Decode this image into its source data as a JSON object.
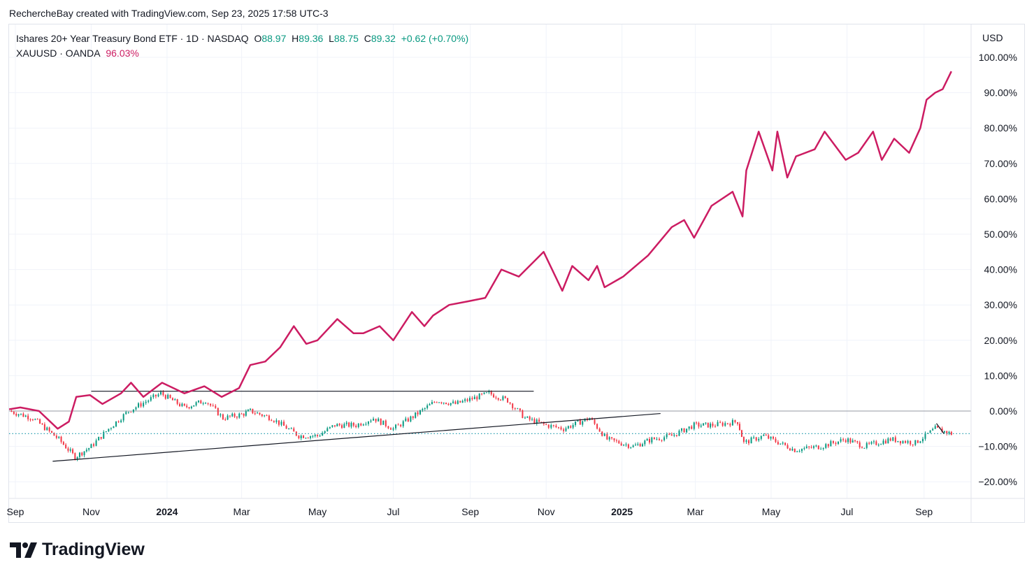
{
  "credit": "RechercheBay created with TradingView.com, Sep 23, 2025 17:58 UTC-3",
  "legend": {
    "main_title": "Ishares 20+ Year Treasury Bond ETF · 1D · NASDAQ",
    "o_label": "O",
    "o": "88.97",
    "h_label": "H",
    "h": "89.36",
    "l_label": "L",
    "l": "88.75",
    "c_label": "C",
    "c": "89.32",
    "change": "+0.62 (+0.70%)",
    "compare_title": "XAUUSD · OANDA",
    "compare_value": "96.03%"
  },
  "currency": "USD",
  "logo_text": "TradingView",
  "chart_data": {
    "type": "line",
    "colors": {
      "gold": "#cc1c62",
      "up": "#089981",
      "down": "#f23645",
      "price_line": "#2a9fb0",
      "trendline": "#131722",
      "zero_line": "#9598a1"
    },
    "x_ticks": [
      {
        "label": "Sep",
        "date": "2023-09-01"
      },
      {
        "label": "Nov",
        "date": "2023-11-01"
      },
      {
        "label": "2024",
        "date": "2024-01-01",
        "bold": true
      },
      {
        "label": "Mar",
        "date": "2024-03-01"
      },
      {
        "label": "May",
        "date": "2024-05-01"
      },
      {
        "label": "Jul",
        "date": "2024-07-01"
      },
      {
        "label": "Sep",
        "date": "2024-09-01"
      },
      {
        "label": "Nov",
        "date": "2024-11-01"
      },
      {
        "label": "2025",
        "date": "2025-01-01",
        "bold": true
      },
      {
        "label": "Mar",
        "date": "2025-03-01"
      },
      {
        "label": "May",
        "date": "2025-05-01"
      },
      {
        "label": "Jul",
        "date": "2025-07-01"
      },
      {
        "label": "Sep",
        "date": "2025-09-01"
      }
    ],
    "y_ticks": [
      "100.00%",
      "90.00%",
      "80.00%",
      "70.00%",
      "60.00%",
      "50.00%",
      "40.00%",
      "30.00%",
      "20.00%",
      "10.00%",
      "0.00%",
      "−10.00%",
      "−20.00%"
    ],
    "y_values": [
      100,
      90,
      80,
      70,
      60,
      50,
      40,
      30,
      20,
      10,
      0,
      -10,
      -20
    ],
    "ylim": [
      -25,
      110
    ],
    "y_unit": "%",
    "grid": true,
    "series": [
      {
        "name": "XAUUSD · OANDA",
        "type": "line",
        "points": [
          [
            "2023-08-27",
            0.5
          ],
          [
            "2023-09-05",
            1
          ],
          [
            "2023-09-20",
            0
          ],
          [
            "2023-10-05",
            -5
          ],
          [
            "2023-10-14",
            -3
          ],
          [
            "2023-10-20",
            4
          ],
          [
            "2023-10-31",
            4.5
          ],
          [
            "2023-11-10",
            2
          ],
          [
            "2023-11-25",
            5
          ],
          [
            "2023-12-03",
            8
          ],
          [
            "2023-12-13",
            4
          ],
          [
            "2023-12-28",
            8
          ],
          [
            "2024-01-15",
            5
          ],
          [
            "2024-01-31",
            7
          ],
          [
            "2024-02-14",
            4
          ],
          [
            "2024-02-28",
            6.5
          ],
          [
            "2024-03-08",
            13
          ],
          [
            "2024-03-20",
            14
          ],
          [
            "2024-04-01",
            18
          ],
          [
            "2024-04-12",
            24
          ],
          [
            "2024-04-22",
            19
          ],
          [
            "2024-05-01",
            20
          ],
          [
            "2024-05-17",
            26
          ],
          [
            "2024-05-30",
            22
          ],
          [
            "2024-06-07",
            22
          ],
          [
            "2024-06-20",
            24
          ],
          [
            "2024-07-01",
            20
          ],
          [
            "2024-07-16",
            28
          ],
          [
            "2024-07-26",
            24
          ],
          [
            "2024-08-02",
            27
          ],
          [
            "2024-08-15",
            30
          ],
          [
            "2024-08-30",
            31
          ],
          [
            "2024-09-13",
            32
          ],
          [
            "2024-09-26",
            40
          ],
          [
            "2024-10-10",
            38
          ],
          [
            "2024-10-30",
            45
          ],
          [
            "2024-11-14",
            34
          ],
          [
            "2024-11-22",
            41
          ],
          [
            "2024-12-05",
            37
          ],
          [
            "2024-12-12",
            41
          ],
          [
            "2024-12-18",
            35
          ],
          [
            "2025-01-02",
            38
          ],
          [
            "2025-01-22",
            44
          ],
          [
            "2025-02-10",
            52
          ],
          [
            "2025-02-20",
            54
          ],
          [
            "2025-02-28",
            49
          ],
          [
            "2025-03-14",
            58
          ],
          [
            "2025-03-31",
            62
          ],
          [
            "2025-04-08",
            55
          ],
          [
            "2025-04-11",
            68
          ],
          [
            "2025-04-21",
            79
          ],
          [
            "2025-04-28",
            72
          ],
          [
            "2025-05-02",
            68
          ],
          [
            "2025-05-06",
            79
          ],
          [
            "2025-05-14",
            66
          ],
          [
            "2025-05-21",
            72
          ],
          [
            "2025-06-05",
            74
          ],
          [
            "2025-06-13",
            79
          ],
          [
            "2025-06-30",
            71
          ],
          [
            "2025-07-10",
            73
          ],
          [
            "2025-07-22",
            79
          ],
          [
            "2025-07-29",
            71
          ],
          [
            "2025-08-08",
            77
          ],
          [
            "2025-08-20",
            73
          ],
          [
            "2025-08-29",
            80
          ],
          [
            "2025-09-03",
            88
          ],
          [
            "2025-09-10",
            90
          ],
          [
            "2025-09-16",
            91
          ],
          [
            "2025-09-23",
            96.03
          ]
        ]
      },
      {
        "name": "Ishares 20+ Year Treasury Bond ETF",
        "type": "candlestick",
        "points": [
          [
            "2023-08-27",
            0
          ],
          [
            "2023-09-15",
            -2
          ],
          [
            "2023-10-06",
            -8
          ],
          [
            "2023-10-19",
            -13
          ],
          [
            "2023-11-01",
            -10
          ],
          [
            "2023-11-15",
            -5
          ],
          [
            "2023-12-01",
            0
          ],
          [
            "2023-12-27",
            5
          ],
          [
            "2024-01-15",
            1
          ],
          [
            "2024-02-01",
            3
          ],
          [
            "2024-02-15",
            -2
          ],
          [
            "2024-03-01",
            -1
          ],
          [
            "2024-03-08",
            0
          ],
          [
            "2024-03-25",
            -2
          ],
          [
            "2024-04-16",
            -7
          ],
          [
            "2024-05-01",
            -7
          ],
          [
            "2024-05-15",
            -4
          ],
          [
            "2024-06-01",
            -4
          ],
          [
            "2024-06-15",
            -2
          ],
          [
            "2024-07-01",
            -5
          ],
          [
            "2024-07-15",
            -2
          ],
          [
            "2024-08-05",
            3
          ],
          [
            "2024-08-20",
            2
          ],
          [
            "2024-09-16",
            5
          ],
          [
            "2024-10-01",
            3
          ],
          [
            "2024-10-15",
            -2
          ],
          [
            "2024-11-01",
            -4
          ],
          [
            "2024-11-15",
            -5
          ],
          [
            "2024-12-06",
            -2
          ],
          [
            "2024-12-20",
            -8
          ],
          [
            "2025-01-10",
            -10
          ],
          [
            "2025-01-25",
            -8
          ],
          [
            "2025-02-10",
            -7
          ],
          [
            "2025-02-28",
            -4
          ],
          [
            "2025-03-15",
            -4
          ],
          [
            "2025-04-04",
            -3
          ],
          [
            "2025-04-09",
            -9
          ],
          [
            "2025-04-25",
            -7
          ],
          [
            "2025-05-20",
            -11
          ],
          [
            "2025-06-10",
            -10
          ],
          [
            "2025-06-30",
            -8
          ],
          [
            "2025-07-15",
            -10
          ],
          [
            "2025-08-05",
            -8
          ],
          [
            "2025-08-25",
            -9
          ],
          [
            "2025-09-10",
            -5
          ],
          [
            "2025-09-23",
            -6.4
          ]
        ]
      }
    ],
    "last_price_pct": -6.4,
    "trendlines": [
      {
        "from": [
          "2023-11-01",
          5.6
        ],
        "to": [
          "2024-10-22",
          5.6
        ]
      },
      {
        "from": [
          "2023-10-01",
          -14.2
        ],
        "to": [
          "2025-02-01",
          -0.7
        ]
      },
      {
        "from": [
          "2025-09-11",
          -3.5
        ],
        "to": [
          "2025-09-17",
          -6.4
        ]
      }
    ]
  }
}
